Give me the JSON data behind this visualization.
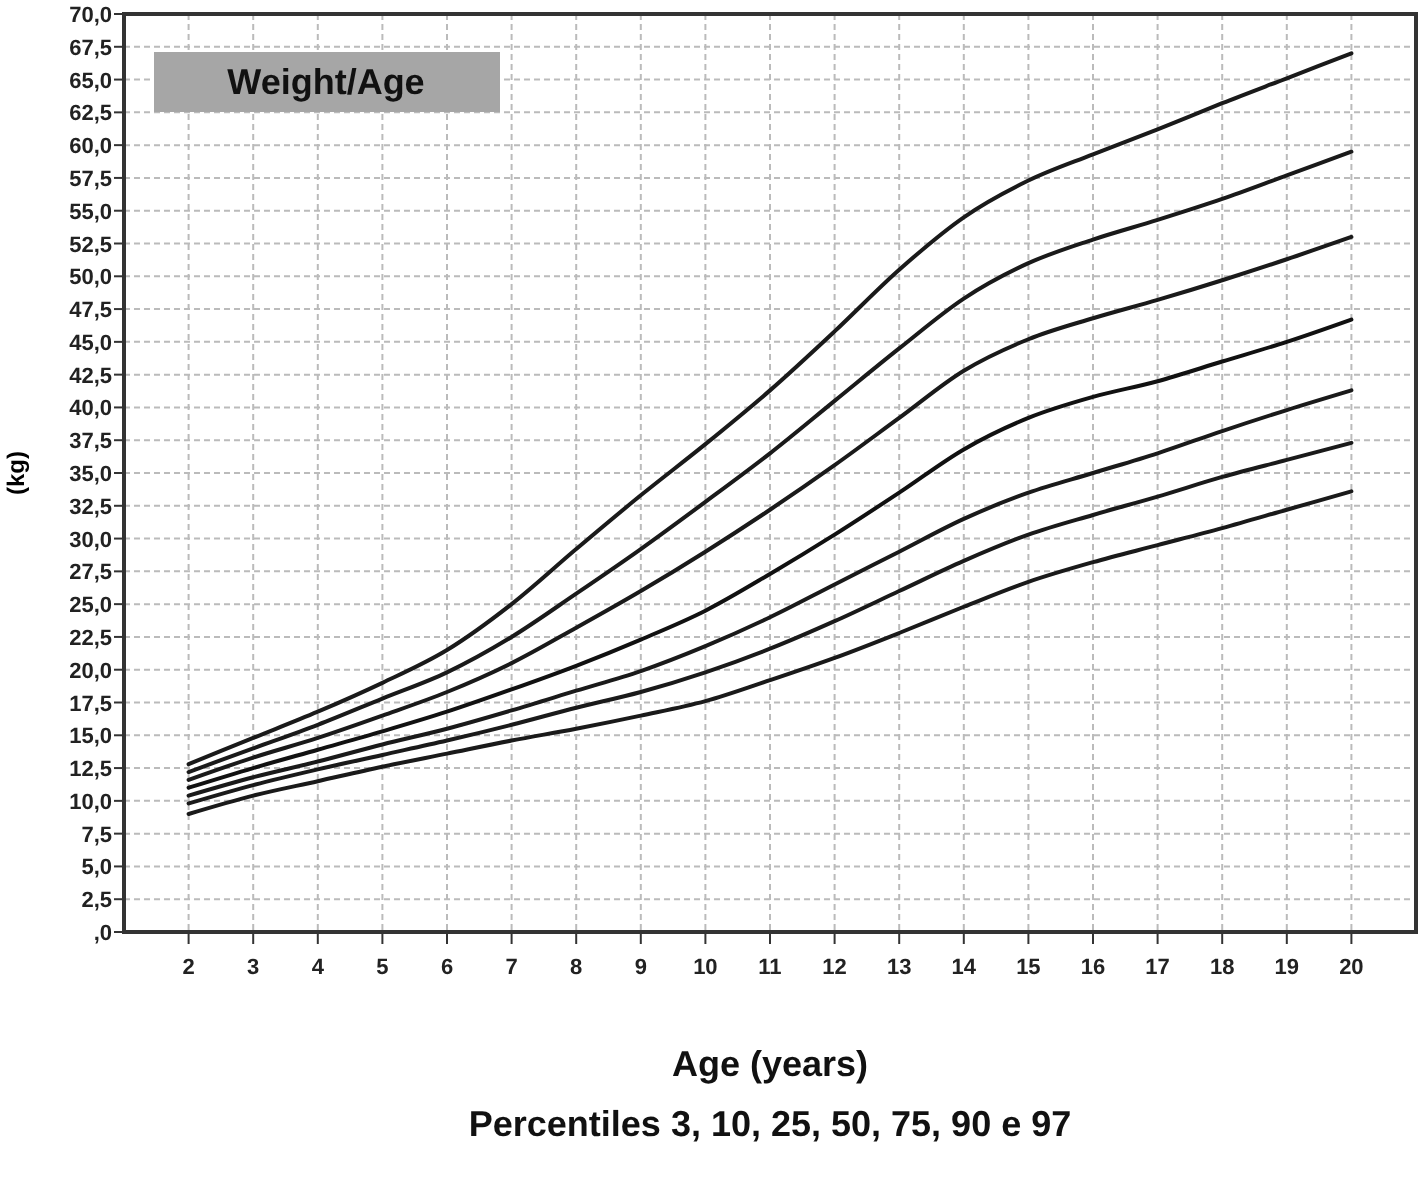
{
  "chart_data": {
    "type": "line",
    "title": "Weight/Age",
    "xlabel": "Age (years)",
    "ylabel": "(kg)",
    "annotations": [
      "Percentiles 3, 10, 25, 50, 75, 90 e 97"
    ],
    "x": [
      2,
      3,
      4,
      5,
      6,
      7,
      8,
      9,
      10,
      11,
      12,
      13,
      14,
      15,
      16,
      17,
      18,
      19,
      20
    ],
    "series": [
      {
        "color": "#1a1a1a",
        "values": [
          12.8,
          14.8,
          16.8,
          19.0,
          21.5,
          25.0,
          29.2,
          33.3,
          37.2,
          41.3,
          45.8,
          50.5,
          54.5,
          57.3,
          59.3,
          61.2,
          63.2,
          65.1,
          67.0
        ]
      },
      {
        "color": "#1a1a1a",
        "values": [
          12.2,
          14.0,
          15.8,
          17.8,
          19.8,
          22.5,
          25.8,
          29.2,
          32.8,
          36.5,
          40.5,
          44.5,
          48.3,
          51.0,
          52.8,
          54.3,
          55.9,
          57.7,
          59.5
        ]
      },
      {
        "color": "#1a1a1a",
        "values": [
          11.6,
          13.3,
          14.8,
          16.5,
          18.3,
          20.5,
          23.2,
          26.0,
          29.0,
          32.2,
          35.6,
          39.2,
          42.8,
          45.2,
          46.8,
          48.2,
          49.7,
          51.3,
          53.0
        ]
      },
      {
        "color": "#111111",
        "values": [
          11.0,
          12.5,
          13.9,
          15.3,
          16.8,
          18.5,
          20.3,
          22.3,
          24.5,
          27.3,
          30.3,
          33.5,
          36.8,
          39.2,
          40.8,
          42.0,
          43.5,
          45.0,
          46.7
        ]
      },
      {
        "color": "#1a1a1a",
        "values": [
          10.4,
          11.8,
          13.0,
          14.3,
          15.5,
          16.9,
          18.4,
          19.9,
          21.8,
          24.0,
          26.5,
          29.0,
          31.5,
          33.5,
          35.0,
          36.5,
          38.2,
          39.8,
          41.3
        ]
      },
      {
        "color": "#1a1a1a",
        "values": [
          9.8,
          11.2,
          12.4,
          13.5,
          14.6,
          15.8,
          17.1,
          18.3,
          19.8,
          21.6,
          23.7,
          26.0,
          28.3,
          30.3,
          31.8,
          33.2,
          34.7,
          36.0,
          37.3
        ]
      },
      {
        "color": "#1a1a1a",
        "values": [
          9.0,
          10.4,
          11.5,
          12.6,
          13.6,
          14.6,
          15.5,
          16.5,
          17.6,
          19.2,
          20.9,
          22.8,
          24.8,
          26.7,
          28.2,
          29.5,
          30.8,
          32.2,
          33.6
        ]
      }
    ],
    "xlim": [
      1,
      21
    ],
    "xticks": [
      2,
      3,
      4,
      5,
      6,
      7,
      8,
      9,
      10,
      11,
      12,
      13,
      14,
      15,
      16,
      17,
      18,
      19,
      20
    ],
    "ylim": [
      0,
      70
    ],
    "yticks": [
      {
        "value": 0,
        "label": ",0"
      },
      {
        "value": 2.5,
        "label": "2,5"
      },
      {
        "value": 5,
        "label": "5,0"
      },
      {
        "value": 7.5,
        "label": "7,5"
      },
      {
        "value": 10,
        "label": "10,0"
      },
      {
        "value": 12.5,
        "label": "12,5"
      },
      {
        "value": 15,
        "label": "15,0"
      },
      {
        "value": 17.5,
        "label": "17,5"
      },
      {
        "value": 20,
        "label": "20,0"
      },
      {
        "value": 22.5,
        "label": "22,5"
      },
      {
        "value": 25,
        "label": "25,0"
      },
      {
        "value": 27.5,
        "label": "27,5"
      },
      {
        "value": 30,
        "label": "30,0"
      },
      {
        "value": 32.5,
        "label": "32,5"
      },
      {
        "value": 35,
        "label": "35,0"
      },
      {
        "value": 37.5,
        "label": "37,5"
      },
      {
        "value": 40,
        "label": "40,0"
      },
      {
        "value": 42.5,
        "label": "42,5"
      },
      {
        "value": 45,
        "label": "45,0"
      },
      {
        "value": 47.5,
        "label": "47,5"
      },
      {
        "value": 50,
        "label": "50,0"
      },
      {
        "value": 52.5,
        "label": "52,5"
      },
      {
        "value": 55,
        "label": "55,0"
      },
      {
        "value": 57.5,
        "label": "57,5"
      },
      {
        "value": 60,
        "label": "60,0"
      },
      {
        "value": 62.5,
        "label": "62,5"
      },
      {
        "value": 65,
        "label": "65,0"
      },
      {
        "value": 67.5,
        "label": "67,5"
      },
      {
        "value": 70,
        "label": "70,0"
      }
    ],
    "grid": true,
    "marker": "none",
    "line_style": "solid"
  }
}
